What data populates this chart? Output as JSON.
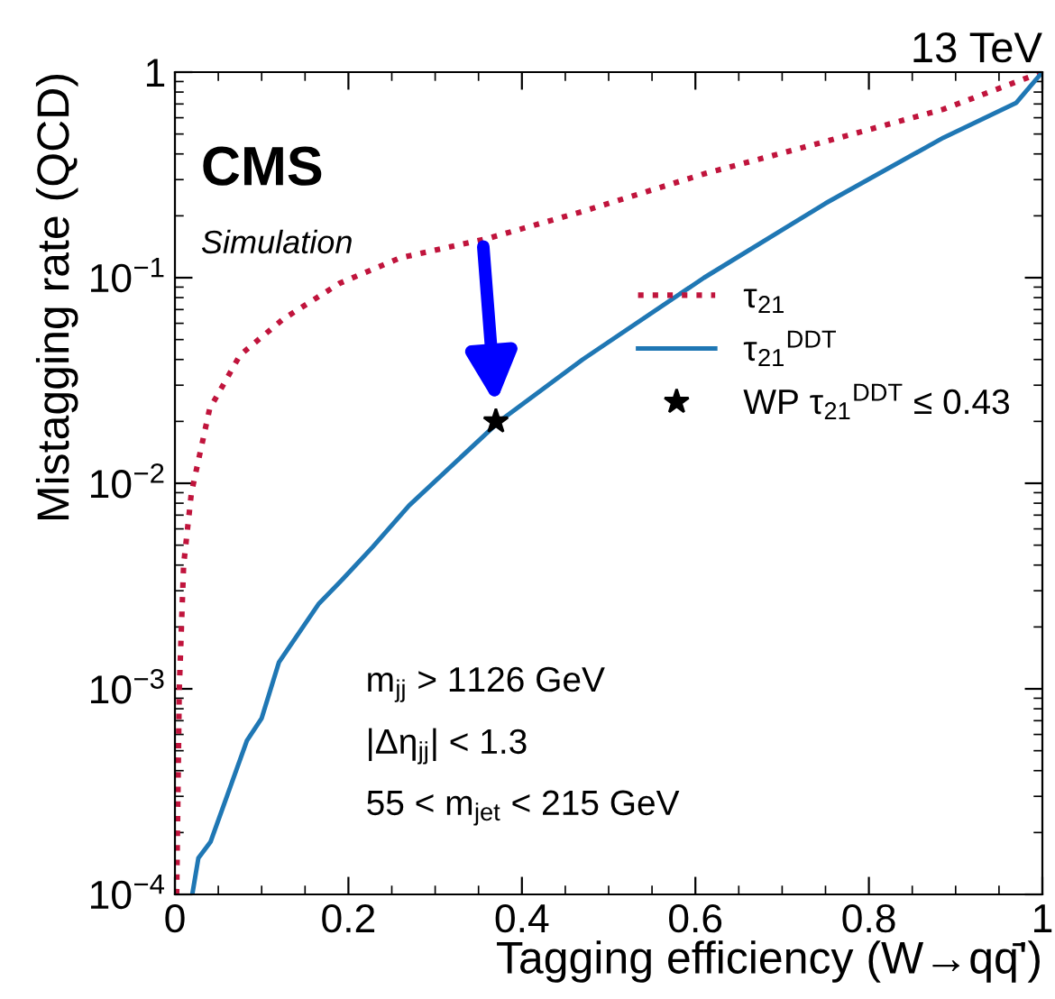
{
  "chart_data": {
    "type": "line",
    "title": "13 TeV",
    "xlabel": "Tagging efficiency (W→qq̄')",
    "ylabel": "Mistagging rate (QCD)",
    "annotations": [
      "CMS",
      "Simulation",
      "m$_{jj}$ > 1126 GeV",
      "|Δη$_{jj}$| < 1.3",
      "55 < m$_{jet}$ < 215 GeV"
    ],
    "log": "y",
    "xlim": [
      0,
      1
    ],
    "ylim": [
      0.0001,
      1
    ],
    "xticks": [
      0,
      0.2,
      0.4,
      0.6,
      0.8,
      1
    ],
    "yticks": [
      {
        "value": 0.0001,
        "label": "10$^{−4}$"
      },
      {
        "value": 0.001,
        "label": "10$^{−3}$"
      },
      {
        "value": 0.01,
        "label": "10$^{−2}$"
      },
      {
        "value": 0.1,
        "label": "10$^{−1}$"
      },
      1
    ],
    "grid": false,
    "legend": "right",
    "series": [
      {
        "name": "τ$_{21}$",
        "color": "#c0143c",
        "line_style": "dotted",
        "x": [
          0.002,
          0.005,
          0.01,
          0.019,
          0.04,
          0.075,
          0.125,
          0.19,
          0.26,
          0.36,
          0.47,
          0.61,
          0.75,
          0.886,
          1.0
        ],
        "values": [
          0.0001,
          0.001,
          0.004,
          0.009,
          0.023,
          0.042,
          0.063,
          0.094,
          0.125,
          0.155,
          0.21,
          0.32,
          0.46,
          0.66,
          1.0
        ]
      },
      {
        "name": "τ$_{21}$$^{DDT}$",
        "color": "#1f77b4",
        "line_style": "solid",
        "x": [
          0.02,
          0.027,
          0.041,
          0.083,
          0.1,
          0.12,
          0.166,
          0.193,
          0.228,
          0.27,
          0.374,
          0.47,
          0.61,
          0.75,
          0.886,
          0.97,
          1.0
        ],
        "values": [
          0.0001,
          0.00015,
          0.00018,
          0.00056,
          0.00072,
          0.00135,
          0.0026,
          0.0034,
          0.0049,
          0.0078,
          0.02,
          0.04,
          0.1,
          0.23,
          0.48,
          0.71,
          1.0
        ]
      },
      {
        "name": "WP τ$_{21}$$^{DDT}$ ≤ 0.43",
        "type": "scatter",
        "marker": "star",
        "color": "#000000",
        "x": [
          0.37
        ],
        "values": [
          0.02
        ]
      }
    ]
  }
}
